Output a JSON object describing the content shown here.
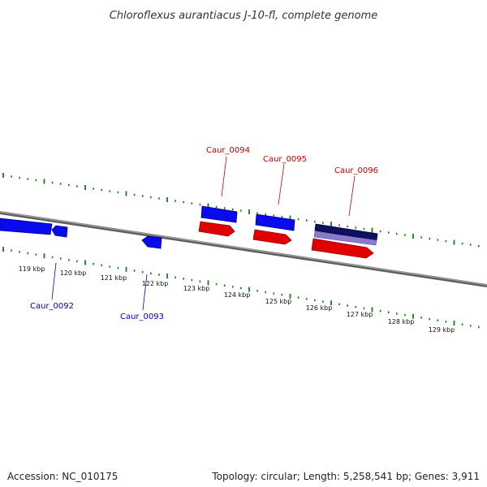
{
  "title": "Chloroflexus aurantiacus J-10-fl, complete genome",
  "footer": {
    "accession": "Accession: NC_010175",
    "summary": "Topology: circular; Length: 5,258,541 bp; Genes: 3,911"
  },
  "colors": {
    "backbone": "#808080",
    "tick_marks": "#1a7a1a",
    "forward_gene": "#e00000",
    "reverse_gene": "#0a0aee",
    "dark_band": "#101060",
    "light_band": "#8a7ad0",
    "label_top": "#c00000",
    "label_bottom": "#0000b0"
  },
  "scale_ticks": [
    {
      "label": "119 kbp",
      "kbp": 119
    },
    {
      "label": "120 kbp",
      "kbp": 120
    },
    {
      "label": "121 kbp",
      "kbp": 121
    },
    {
      "label": "122 kbp",
      "kbp": 122
    },
    {
      "label": "123 kbp",
      "kbp": 123
    },
    {
      "label": "124 kbp",
      "kbp": 124
    },
    {
      "label": "125 kbp",
      "kbp": 125
    },
    {
      "label": "126 kbp",
      "kbp": 126
    },
    {
      "label": "127 kbp",
      "kbp": 127
    },
    {
      "label": "128 kbp",
      "kbp": 128
    },
    {
      "label": "129 kbp",
      "kbp": 129
    }
  ],
  "gene_labels": [
    {
      "label": "Caur_0092",
      "strand": "bottom"
    },
    {
      "label": "Caur_0093",
      "strand": "bottom"
    },
    {
      "label": "Caur_0094",
      "strand": "top"
    },
    {
      "label": "Caur_0095",
      "strand": "top"
    },
    {
      "label": "Caur_0096",
      "strand": "top"
    }
  ]
}
